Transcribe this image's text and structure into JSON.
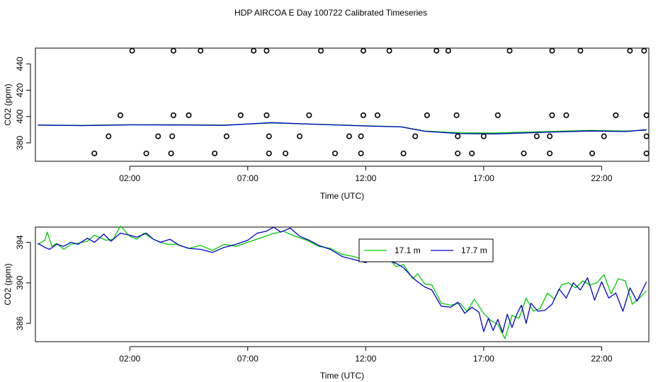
{
  "page": {
    "title": "HDP AIRCOA E  Day 100722  Calibrated Timeseries"
  },
  "colors": {
    "series_17_1m": "#00cc00",
    "series_17_7m": "#0000cc",
    "flag_markers": "#000000"
  },
  "chart_data": [
    {
      "type": "scatter",
      "panel": "top",
      "xlabel": "Time (UTC)",
      "ylabel": "CO2 (ppm)",
      "xlim": [
        -2.0,
        24.0
      ],
      "ylim": [
        366,
        452
      ],
      "x_ticks": [
        2,
        7,
        12,
        17,
        22
      ],
      "x_tick_labels": [
        "02:00",
        "07:00",
        "12:00",
        "17:00",
        "22:00"
      ],
      "y_ticks": [
        380,
        400,
        420,
        440
      ],
      "y_tick_labels": [
        "380",
        "400",
        "420",
        "440"
      ],
      "grid": false,
      "flags": {
        "y_levels": [
          372,
          385,
          401,
          450
        ],
        "points": [
          {
            "x": 0.5,
            "y": 372
          },
          {
            "x": 2.7,
            "y": 372
          },
          {
            "x": 3.75,
            "y": 372
          },
          {
            "x": 5.6,
            "y": 372
          },
          {
            "x": 7.9,
            "y": 372
          },
          {
            "x": 8.6,
            "y": 372
          },
          {
            "x": 10.7,
            "y": 372
          },
          {
            "x": 11.8,
            "y": 372
          },
          {
            "x": 13.6,
            "y": 372
          },
          {
            "x": 15.9,
            "y": 372
          },
          {
            "x": 16.5,
            "y": 372
          },
          {
            "x": 18.7,
            "y": 372
          },
          {
            "x": 19.8,
            "y": 372
          },
          {
            "x": 21.6,
            "y": 372
          },
          {
            "x": 23.9,
            "y": 372
          },
          {
            "x": 1.1,
            "y": 385
          },
          {
            "x": 3.2,
            "y": 385
          },
          {
            "x": 3.8,
            "y": 385
          },
          {
            "x": 6.1,
            "y": 385
          },
          {
            "x": 7.9,
            "y": 385
          },
          {
            "x": 9.2,
            "y": 385
          },
          {
            "x": 11.3,
            "y": 385
          },
          {
            "x": 11.8,
            "y": 385
          },
          {
            "x": 14.1,
            "y": 385
          },
          {
            "x": 15.9,
            "y": 385
          },
          {
            "x": 17.0,
            "y": 385
          },
          {
            "x": 19.25,
            "y": 385
          },
          {
            "x": 19.8,
            "y": 385
          },
          {
            "x": 22.1,
            "y": 385
          },
          {
            "x": 23.9,
            "y": 385
          },
          {
            "x": 1.6,
            "y": 401
          },
          {
            "x": 3.85,
            "y": 401
          },
          {
            "x": 4.5,
            "y": 401
          },
          {
            "x": 6.7,
            "y": 401
          },
          {
            "x": 7.8,
            "y": 401
          },
          {
            "x": 9.6,
            "y": 401
          },
          {
            "x": 11.9,
            "y": 401
          },
          {
            "x": 12.5,
            "y": 401
          },
          {
            "x": 14.6,
            "y": 401
          },
          {
            "x": 15.85,
            "y": 401
          },
          {
            "x": 17.6,
            "y": 401
          },
          {
            "x": 19.9,
            "y": 401
          },
          {
            "x": 20.5,
            "y": 401
          },
          {
            "x": 22.6,
            "y": 401
          },
          {
            "x": 23.9,
            "y": 401
          },
          {
            "x": 2.1,
            "y": 450
          },
          {
            "x": 3.85,
            "y": 450
          },
          {
            "x": 5.0,
            "y": 450
          },
          {
            "x": 7.25,
            "y": 450
          },
          {
            "x": 7.8,
            "y": 450
          },
          {
            "x": 10.1,
            "y": 450
          },
          {
            "x": 11.9,
            "y": 450
          },
          {
            "x": 13.0,
            "y": 450
          },
          {
            "x": 15.0,
            "y": 450
          },
          {
            "x": 15.5,
            "y": 450
          },
          {
            "x": 18.1,
            "y": 450
          },
          {
            "x": 19.9,
            "y": 450
          },
          {
            "x": 21.1,
            "y": 450
          },
          {
            "x": 23.2,
            "y": 450
          },
          {
            "x": 23.8,
            "y": 450
          }
        ]
      },
      "series": [
        {
          "x": [
            -1.9,
            0,
            2,
            4,
            6,
            8,
            10,
            12,
            13.5,
            14.5,
            16,
            17.5,
            19.5,
            21.5,
            23,
            23.9
          ],
          "values": [
            393.5,
            393.3,
            393.8,
            393.8,
            393.5,
            395.1,
            394.1,
            393.0,
            392.3,
            389.0,
            387.6,
            387.5,
            388.5,
            389.5,
            389.0,
            389.6
          ]
        },
        {
          "x": [
            -1.9,
            0,
            2,
            4,
            6,
            8,
            10,
            12,
            13.5,
            14.5,
            16,
            17.5,
            19.5,
            21.5,
            23,
            23.9
          ],
          "values": [
            393.5,
            393.1,
            393.7,
            393.6,
            393.3,
            395.4,
            394.0,
            392.8,
            392.1,
            388.8,
            387.0,
            386.8,
            388.0,
            389.0,
            388.6,
            390.0
          ]
        }
      ]
    },
    {
      "type": "line",
      "panel": "bottom",
      "xlabel": "Time (UTC)",
      "ylabel": "CO2 (ppm)",
      "xlim": [
        -2.0,
        24.0
      ],
      "ylim": [
        384.2,
        395.5
      ],
      "x_ticks": [
        2,
        7,
        12,
        17,
        22
      ],
      "x_tick_labels": [
        "02:00",
        "07:00",
        "12:00",
        "17:00",
        "22:00"
      ],
      "y_ticks": [
        386,
        390,
        394
      ],
      "y_tick_labels": [
        "386",
        "390",
        "394"
      ],
      "grid": false,
      "legend_position": "top-center",
      "series": [
        {
          "name": "17.1 m",
          "x": [
            -1.9,
            -1.6,
            -1.5,
            -1.3,
            -1.1,
            -0.8,
            -0.5,
            -0.2,
            0.2,
            0.5,
            1.0,
            1.3,
            1.6,
            2.0,
            2.3,
            2.6,
            3.0,
            3.3,
            3.6,
            4.0,
            4.5,
            5.0,
            5.5,
            6.0,
            6.5,
            7.0,
            7.5,
            8.0,
            8.5,
            9.0,
            9.5,
            10.0,
            10.5,
            11.0,
            11.5,
            12.0,
            12.5,
            13.0,
            13.3,
            13.6,
            14.0,
            14.2,
            14.5,
            14.8,
            15.2,
            15.6,
            16.0,
            16.3,
            16.6,
            17.0,
            17.3,
            17.6,
            17.9,
            18.2,
            18.5,
            18.8,
            19.1,
            19.4,
            19.7,
            20.0,
            20.3,
            20.6,
            20.9,
            21.2,
            21.5,
            21.8,
            22.1,
            22.4,
            22.7,
            23.0,
            23.3,
            23.6,
            23.9
          ],
          "values": [
            393.8,
            394.2,
            395.0,
            393.6,
            393.9,
            393.3,
            393.8,
            393.9,
            394.1,
            394.7,
            394.2,
            394.3,
            395.6,
            394.6,
            394.3,
            394.9,
            394.3,
            394.0,
            393.8,
            393.8,
            393.4,
            393.7,
            393.2,
            393.8,
            393.6,
            394.0,
            394.4,
            394.8,
            395.1,
            394.6,
            394.2,
            393.6,
            393.4,
            392.8,
            392.6,
            392.2,
            392.6,
            392.3,
            391.6,
            391.8,
            390.4,
            390.9,
            389.9,
            389.8,
            388.0,
            387.8,
            388.0,
            387.2,
            388.4,
            387.0,
            386.3,
            385.9,
            384.5,
            386.8,
            386.5,
            388.5,
            387.2,
            387.5,
            389.0,
            388.4,
            389.8,
            390.0,
            389.5,
            390.2,
            389.8,
            390.0,
            390.8,
            388.9,
            390.4,
            390.2,
            387.9,
            388.5,
            389.2
          ]
        },
        {
          "name": "17.7 m",
          "x": [
            -1.9,
            -1.6,
            -1.4,
            -1.1,
            -0.8,
            -0.5,
            -0.2,
            0.2,
            0.5,
            0.9,
            1.2,
            1.6,
            2.0,
            2.3,
            2.7,
            3.0,
            3.3,
            3.7,
            4.1,
            4.5,
            5.0,
            5.5,
            6.0,
            6.5,
            7.0,
            7.4,
            7.8,
            8.1,
            8.4,
            8.8,
            9.2,
            9.6,
            10.0,
            10.5,
            11.0,
            11.5,
            12.0,
            12.5,
            13.0,
            13.3,
            13.6,
            14.0,
            14.2,
            14.5,
            14.8,
            15.2,
            15.6,
            15.9,
            16.2,
            16.5,
            16.8,
            17.0,
            17.2,
            17.4,
            17.6,
            17.8,
            18.0,
            18.2,
            18.4,
            18.6,
            18.8,
            19.0,
            19.3,
            19.6,
            19.9,
            20.2,
            20.5,
            20.8,
            21.1,
            21.4,
            21.7,
            22.0,
            22.3,
            22.6,
            22.9,
            23.2,
            23.5,
            23.9
          ],
          "values": [
            393.9,
            393.5,
            393.3,
            393.8,
            393.6,
            394.0,
            393.8,
            394.4,
            394.0,
            394.8,
            394.1,
            394.9,
            394.7,
            394.5,
            394.9,
            394.3,
            394.0,
            394.3,
            393.7,
            393.4,
            393.3,
            393.0,
            393.5,
            393.8,
            394.2,
            394.9,
            395.1,
            395.5,
            395.0,
            395.4,
            394.6,
            394.2,
            393.7,
            393.3,
            392.6,
            392.3,
            392.0,
            392.6,
            392.2,
            391.9,
            391.5,
            390.5,
            390.1,
            389.6,
            389.3,
            387.7,
            387.6,
            388.1,
            387.0,
            387.6,
            387.1,
            385.2,
            386.5,
            385.3,
            386.4,
            385.1,
            386.9,
            385.6,
            386.9,
            387.8,
            386.0,
            388.0,
            387.2,
            387.3,
            387.9,
            389.4,
            388.5,
            390.0,
            389.3,
            390.5,
            388.3,
            390.1,
            388.5,
            389.0,
            387.2,
            389.5,
            388.2,
            390.1
          ]
        }
      ]
    }
  ]
}
